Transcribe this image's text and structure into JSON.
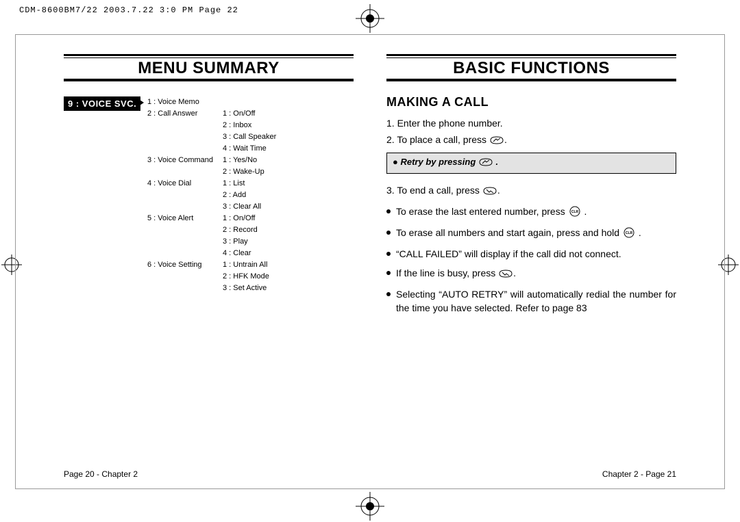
{
  "colors": {
    "background": "#ffffff",
    "text": "#000000",
    "rule": "#000000",
    "box_bg": "#e3e3e3",
    "crop_mark": "#000000",
    "page_border": "#999999"
  },
  "print_header": "CDM-8600BM7/22  2003.7.22  3:0 PM  Page 22",
  "left_page": {
    "title": "MENU SUMMARY",
    "section_label": "9 : VOICE SVC.",
    "menu": {
      "main": [
        "1 : Voice Memo",
        "2 : Call Answer",
        "",
        "",
        "",
        "3 : Voice Command",
        "",
        "4 : Voice Dial",
        "",
        "",
        "5 : Voice Alert",
        "",
        "",
        "",
        "6 : Voice Setting",
        "",
        ""
      ],
      "sub": [
        "",
        "1 : On/Off",
        "2 : Inbox",
        "3 : Call Speaker",
        "4 : Wait Time",
        "1 : Yes/No",
        "2 : Wake-Up",
        "1 : List",
        "2 : Add",
        "3 : Clear All",
        "1 : On/Off",
        "2 : Record",
        "3 : Play",
        "4 : Clear",
        "1 : Untrain All",
        "2 : HFK Mode",
        "3 : Set Active"
      ]
    },
    "footer": "Page 20 - Chapter 2"
  },
  "right_page": {
    "title": "BASIC FUNCTIONS",
    "sub_heading": "MAKING A CALL",
    "step1": "1. Enter the phone number.",
    "step2_pre": "2. To place a call, press",
    "step2_post": ".",
    "note_pre": "Retry by pressing",
    "note_post": ".",
    "step3_pre": "3. To end a call, press",
    "step3_post": ".",
    "bullets": [
      {
        "pre": "To erase the last entered number, press ",
        "icon": "clr",
        "post": " ."
      },
      {
        "pre": "To erase all numbers and start again, press and hold ",
        "icon": "clr",
        "post": " ."
      },
      {
        "pre": "“CALL FAILED” will display if the call did not connect.",
        "icon": null,
        "post": ""
      },
      {
        "pre": "If the line is busy, press ",
        "icon": "end",
        "post": "."
      },
      {
        "pre": "Selecting “AUTO RETRY” will automatically redial the number for the time you have selected. Refer to page 83",
        "icon": null,
        "post": ""
      }
    ],
    "footer": "Chapter 2 - Page 21"
  },
  "typography": {
    "title_fontsize": 24,
    "subheading_fontsize": 18,
    "body_fontsize": 14,
    "menu_fontsize": 11,
    "footer_fontsize": 12
  }
}
